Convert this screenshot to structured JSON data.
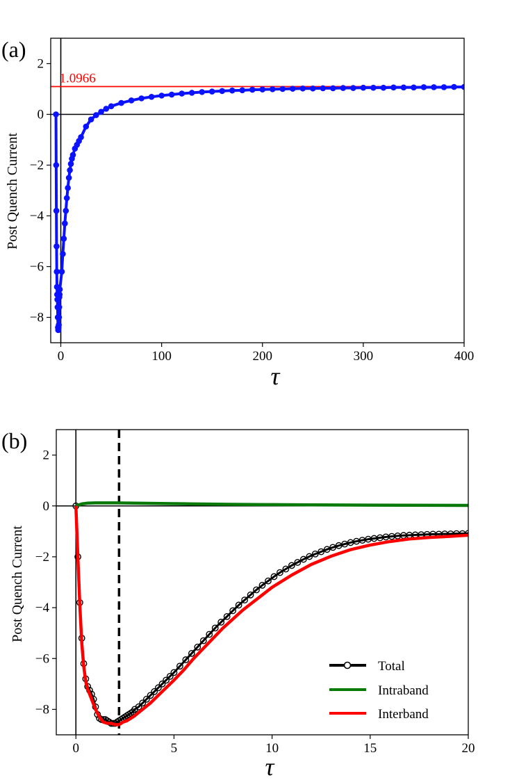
{
  "colors": {
    "blue": "#0a12ff",
    "red": "#ff0000",
    "green": "#097a09",
    "black": "#000000"
  },
  "chart_data": [
    {
      "panel": "(a)",
      "type": "line",
      "xlabel": "τ",
      "ylabel": "Post Quench Current",
      "xlim": [
        -10,
        400
      ],
      "ylim": [
        -9,
        3
      ],
      "xticks": [
        0,
        100,
        200,
        300,
        400
      ],
      "yticks": [
        -8,
        -6,
        -4,
        -2,
        0,
        2
      ],
      "hline": {
        "y": 1.0966,
        "label": "1.0966",
        "color": "#ff0000"
      },
      "zero_line": true,
      "vline_at_zero": true,
      "series": [
        {
          "color": "#0a12ff",
          "marker": "o",
          "x": [
            -4.8,
            -4.6,
            -4.4,
            -4.2,
            -4.0,
            -3.8,
            -3.6,
            -3.4,
            -3.2,
            -3.0,
            -2.8,
            -2.6,
            -2.4,
            -2.2,
            -2.0,
            -1.8,
            -1.6,
            -1.4,
            -1.2,
            -1.0,
            1.0,
            2.0,
            3.0,
            4.0,
            5.0,
            6.0,
            7.0,
            8.0,
            9.0,
            10.0,
            11.0,
            12.0,
            14.0,
            16.0,
            18.0,
            20.0,
            25.0,
            30.0,
            35.0,
            40.0,
            45.0,
            50.0,
            60.0,
            70.0,
            80.0,
            90.0,
            100.0,
            110.0,
            120.0,
            130.0,
            140.0,
            150.0,
            160.0,
            170.0,
            180.0,
            190.0,
            200.0,
            210.0,
            220.0,
            230.0,
            240.0,
            250.0,
            260.0,
            270.0,
            280.0,
            290.0,
            300.0,
            310.0,
            320.0,
            330.0,
            340.0,
            350.0,
            360.0,
            370.0,
            380.0,
            390.0,
            400.0
          ],
          "y": [
            0.0,
            -2.0,
            -3.8,
            -5.2,
            -6.2,
            -6.8,
            -7.1,
            -7.3,
            -7.6,
            -8.0,
            -8.4,
            -8.5,
            -8.5,
            -8.4,
            -8.3,
            -8.0,
            -7.6,
            -7.2,
            -7.1,
            -6.9,
            -6.2,
            -5.5,
            -4.9,
            -4.3,
            -3.8,
            -3.3,
            -2.9,
            -2.5,
            -2.2,
            -1.95,
            -1.75,
            -1.6,
            -1.35,
            -1.2,
            -1.05,
            -0.9,
            -0.48,
            -0.2,
            -0.03,
            0.1,
            0.22,
            0.32,
            0.45,
            0.55,
            0.63,
            0.69,
            0.74,
            0.78,
            0.82,
            0.85,
            0.88,
            0.9,
            0.92,
            0.94,
            0.95,
            0.97,
            0.98,
            0.99,
            1.0,
            1.01,
            1.02,
            1.02,
            1.03,
            1.03,
            1.04,
            1.04,
            1.05,
            1.05,
            1.05,
            1.06,
            1.06,
            1.06,
            1.07,
            1.07,
            1.07,
            1.08,
            1.08
          ]
        }
      ]
    },
    {
      "panel": "(b)",
      "type": "line",
      "xlabel": "τ",
      "ylabel": "Post Quench Current",
      "xlim": [
        -1,
        20
      ],
      "ylim": [
        -9,
        3
      ],
      "xticks": [
        0,
        5,
        10,
        15,
        20
      ],
      "yticks": [
        -8,
        -6,
        -4,
        -2,
        0,
        2
      ],
      "vline_dashed_x": 2.2,
      "zero_line": true,
      "vline_at_zero": true,
      "legend_position": "bottom-right",
      "series": [
        {
          "name": "Total",
          "color": "#000000",
          "marker": "o",
          "x": [
            0.0,
            0.1,
            0.2,
            0.3,
            0.4,
            0.5,
            0.6,
            0.7,
            0.8,
            0.9,
            1.0,
            1.1,
            1.2,
            1.3,
            1.4,
            1.5,
            1.6,
            1.7,
            1.8,
            1.9,
            2.0,
            2.1,
            2.2,
            2.3,
            2.4,
            2.5,
            2.6,
            2.7,
            2.8,
            2.9,
            3.0,
            3.2,
            3.4,
            3.6,
            3.8,
            4.0,
            4.2,
            4.4,
            4.6,
            4.8,
            5.0,
            5.3,
            5.6,
            5.9,
            6.2,
            6.5,
            6.8,
            7.1,
            7.4,
            7.7,
            8.0,
            8.3,
            8.6,
            8.9,
            9.2,
            9.5,
            9.8,
            10.1,
            10.4,
            10.7,
            11.0,
            11.3,
            11.6,
            11.9,
            12.2,
            12.5,
            12.8,
            13.1,
            13.4,
            13.7,
            14.0,
            14.3,
            14.6,
            14.9,
            15.2,
            15.5,
            15.8,
            16.1,
            16.4,
            16.7,
            17.0,
            17.3,
            17.6,
            17.9,
            18.2,
            18.5,
            18.8,
            19.1,
            19.4,
            19.7,
            20.0
          ],
          "y": [
            0.0,
            -2.0,
            -3.8,
            -5.2,
            -6.2,
            -6.8,
            -7.1,
            -7.25,
            -7.4,
            -7.6,
            -7.9,
            -8.2,
            -8.35,
            -8.4,
            -8.4,
            -8.4,
            -8.45,
            -8.5,
            -8.55,
            -8.55,
            -8.55,
            -8.5,
            -8.45,
            -8.4,
            -8.35,
            -8.3,
            -8.25,
            -8.2,
            -8.15,
            -8.1,
            -8.0,
            -7.9,
            -7.75,
            -7.6,
            -7.45,
            -7.3,
            -7.15,
            -7.0,
            -6.85,
            -6.7,
            -6.55,
            -6.3,
            -6.05,
            -5.8,
            -5.55,
            -5.3,
            -5.05,
            -4.8,
            -4.57,
            -4.35,
            -4.12,
            -3.9,
            -3.7,
            -3.5,
            -3.3,
            -3.12,
            -2.95,
            -2.78,
            -2.62,
            -2.48,
            -2.34,
            -2.22,
            -2.1,
            -1.99,
            -1.89,
            -1.8,
            -1.71,
            -1.63,
            -1.56,
            -1.5,
            -1.44,
            -1.39,
            -1.35,
            -1.31,
            -1.28,
            -1.25,
            -1.22,
            -1.2,
            -1.18,
            -1.16,
            -1.15,
            -1.14,
            -1.13,
            -1.12,
            -1.11,
            -1.11,
            -1.1,
            -1.1,
            -1.09,
            -1.09,
            -1.08
          ]
        },
        {
          "name": "Intraband",
          "color": "#097a09",
          "x": [
            0.0,
            0.3,
            0.6,
            1.0,
            1.5,
            2.0,
            3.0,
            4.0,
            5.0,
            6.0,
            8.0,
            10.0,
            12.0,
            15.0,
            20.0
          ],
          "y": [
            0.0,
            0.08,
            0.11,
            0.12,
            0.12,
            0.12,
            0.11,
            0.1,
            0.09,
            0.08,
            0.06,
            0.05,
            0.04,
            0.03,
            0.02
          ]
        },
        {
          "name": "Interband",
          "color": "#ff0000",
          "x": [
            0.0,
            0.1,
            0.2,
            0.3,
            0.4,
            0.5,
            0.6,
            0.7,
            0.8,
            0.9,
            1.0,
            1.2,
            1.4,
            1.6,
            1.8,
            2.0,
            2.2,
            2.4,
            2.6,
            2.8,
            3.0,
            3.4,
            3.8,
            4.2,
            4.6,
            5.0,
            5.5,
            6.0,
            6.5,
            7.0,
            7.5,
            8.0,
            8.5,
            9.0,
            9.5,
            10.0,
            11.0,
            12.0,
            13.0,
            14.0,
            15.0,
            16.0,
            17.0,
            18.0,
            19.0,
            20.0
          ],
          "y": [
            0.0,
            -2.0,
            -3.9,
            -5.4,
            -6.3,
            -6.9,
            -7.2,
            -7.4,
            -7.6,
            -7.8,
            -8.0,
            -8.3,
            -8.5,
            -8.55,
            -8.55,
            -8.6,
            -8.6,
            -8.5,
            -8.45,
            -8.35,
            -8.25,
            -8.0,
            -7.75,
            -7.45,
            -7.15,
            -6.85,
            -6.45,
            -6.0,
            -5.6,
            -5.2,
            -4.8,
            -4.45,
            -4.1,
            -3.8,
            -3.5,
            -3.2,
            -2.72,
            -2.3,
            -1.98,
            -1.72,
            -1.54,
            -1.4,
            -1.3,
            -1.24,
            -1.2,
            -1.15
          ]
        }
      ]
    }
  ]
}
